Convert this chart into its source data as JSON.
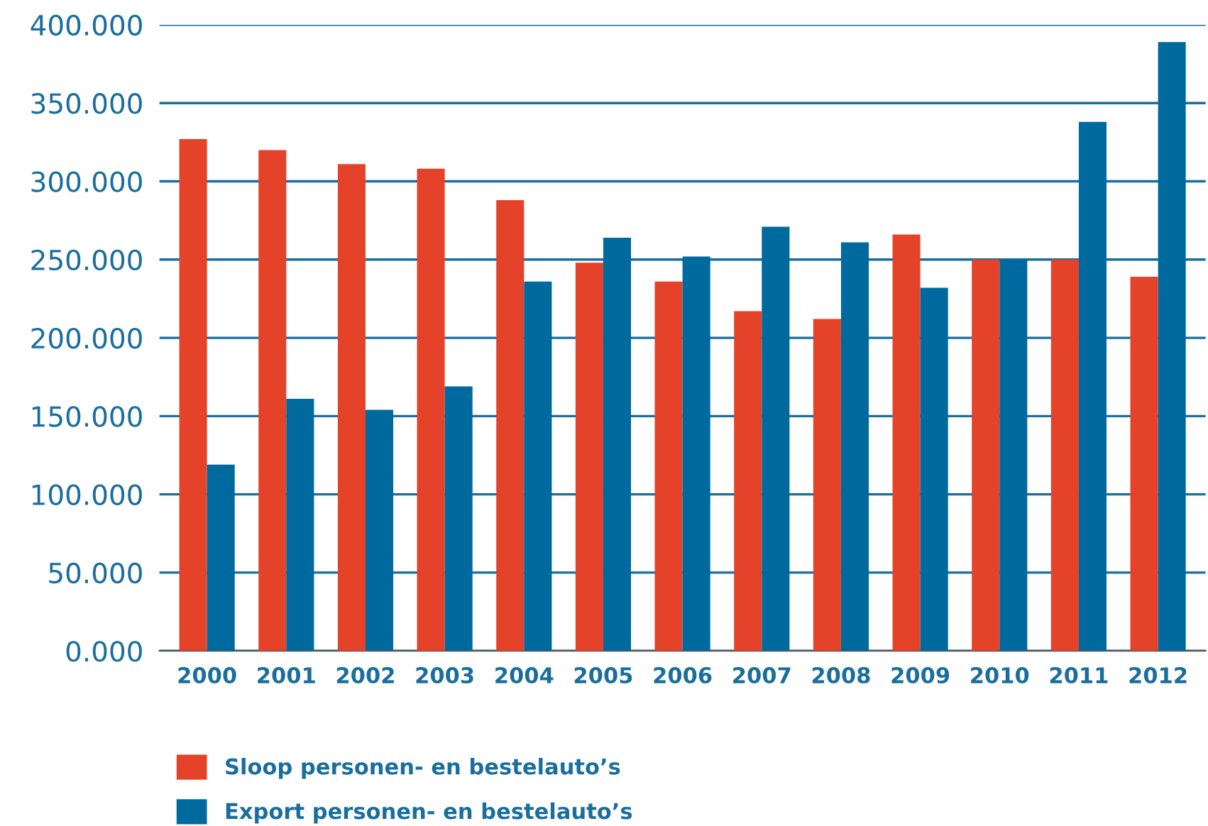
{
  "chart_data": {
    "type": "bar",
    "categories": [
      "2000",
      "2001",
      "2002",
      "2003",
      "2004",
      "2005",
      "2006",
      "2007",
      "2008",
      "2009",
      "2010",
      "2011",
      "2012"
    ],
    "series": [
      {
        "name": "Sloop personen- en bestelauto’s",
        "color": "#e4432a",
        "values": [
          327,
          320,
          311,
          308,
          288,
          248,
          236,
          217,
          212,
          266,
          250,
          250,
          239
        ]
      },
      {
        "name": "Export personen- en bestelauto’s",
        "color": "#006a9e",
        "values": [
          119,
          161,
          154,
          169,
          236,
          264,
          252,
          271,
          261,
          232,
          250,
          338,
          389
        ]
      }
    ],
    "ylim": [
      0,
      400
    ],
    "yticks": [
      {
        "value": 0,
        "label": "0.000"
      },
      {
        "value": 50,
        "label": "50.000"
      },
      {
        "value": 100,
        "label": "100.000"
      },
      {
        "value": 150,
        "label": "150.000"
      },
      {
        "value": 200,
        "label": "200.000"
      },
      {
        "value": 250,
        "label": "250.000"
      },
      {
        "value": 300,
        "label": "300.000"
      },
      {
        "value": 350,
        "label": "350.000"
      },
      {
        "value": 400,
        "label": "400.000"
      }
    ],
    "grid": "y",
    "legend": "bottom left"
  }
}
